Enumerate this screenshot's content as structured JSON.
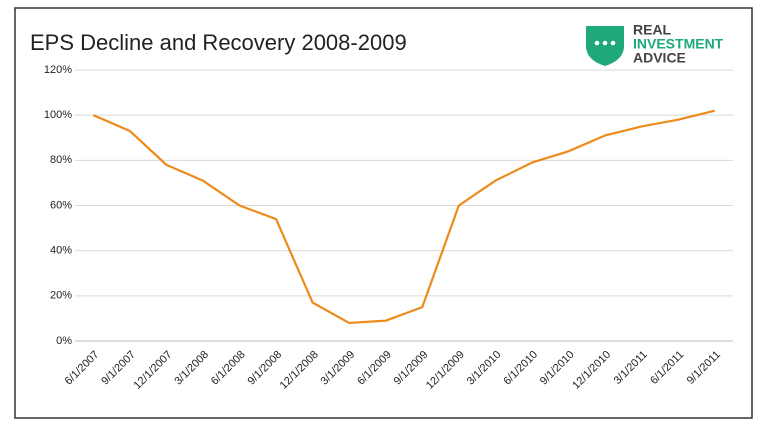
{
  "chart_data": {
    "type": "line",
    "title": "EPS Decline and Recovery 2008-2009",
    "categories": [
      "6/1/2007",
      "9/1/2007",
      "12/1/2007",
      "3/1/2008",
      "6/1/2008",
      "9/1/2008",
      "12/1/2008",
      "3/1/2009",
      "6/1/2009",
      "9/1/2009",
      "12/1/2009",
      "3/1/2010",
      "6/1/2010",
      "9/1/2010",
      "12/1/2010",
      "3/1/2011",
      "6/1/2011",
      "9/1/2011"
    ],
    "values": [
      100,
      93,
      78,
      71,
      60,
      54,
      17,
      8,
      9,
      15,
      60,
      71,
      79,
      84,
      91,
      95,
      98,
      102
    ],
    "color": "#ee8a1a",
    "ylim": [
      0,
      120
    ],
    "yticks": [
      {
        "value": 0,
        "label": "0%"
      },
      {
        "value": 20,
        "label": "20%"
      },
      {
        "value": 40,
        "label": "40%"
      },
      {
        "value": 60,
        "label": "60%"
      },
      {
        "value": 80,
        "label": "80%"
      },
      {
        "value": 100,
        "label": "100%"
      },
      {
        "value": 120,
        "label": "120%"
      }
    ],
    "grid": true
  },
  "logo": {
    "lines": [
      "REAL",
      "INVESTMENT",
      "ADVICE"
    ]
  }
}
